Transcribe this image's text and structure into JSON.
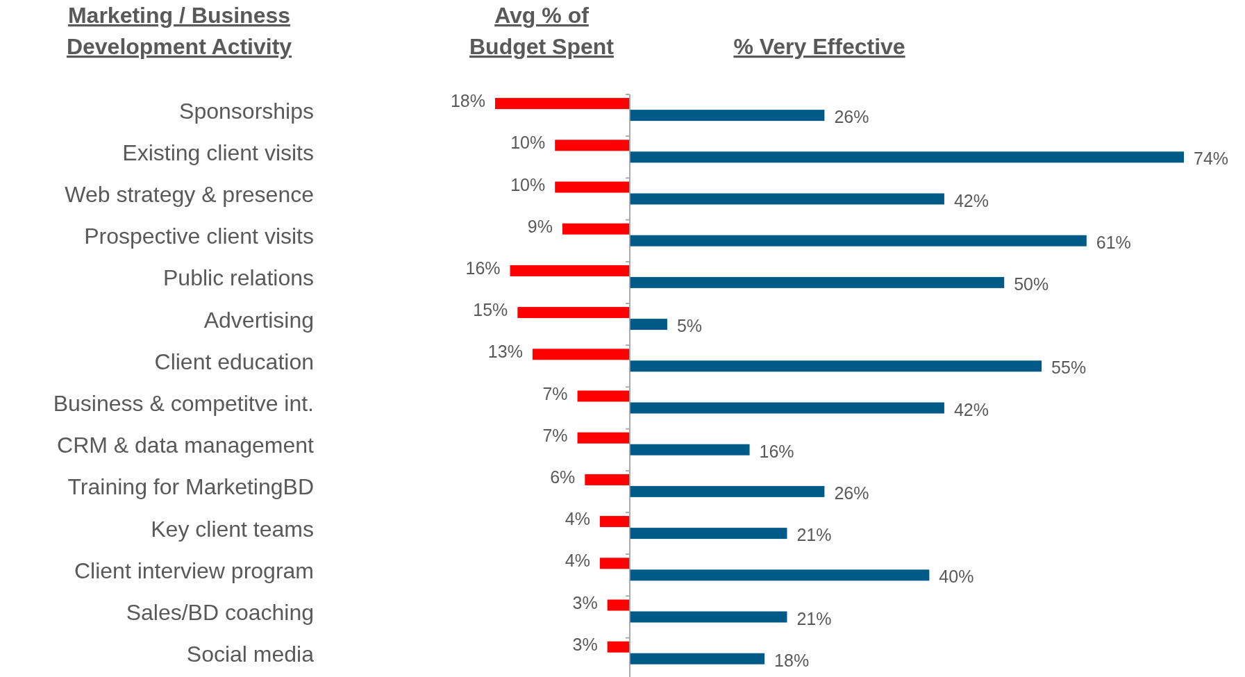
{
  "chart_data": [
    {
      "type": "bar",
      "orientation": "horizontal",
      "title": "Avg % of Budget Spent",
      "ylabel": "Marketing / Business Development  Activity",
      "tick_labels": "y",
      "color": "#ff0000",
      "xlim": [
        18,
        0
      ],
      "categories": [
        "Sponsorships",
        "Existing client visits",
        "Web strategy & presence",
        "Prospective client visits",
        "Public relations",
        "Advertising",
        "Client education",
        "Business & competitve int.",
        "CRM & data management",
        "Training for MarketingBD",
        "Key client teams",
        "Client interview program",
        "Sales/BD coaching",
        "Social media"
      ],
      "values": [
        18,
        10,
        10,
        9,
        16,
        15,
        13,
        7,
        7,
        6,
        4,
        4,
        3,
        3
      ],
      "value_labels": [
        "18%",
        "10%",
        "10%",
        "9%",
        "16%",
        "15%",
        "13%",
        "7%",
        "7%",
        "6%",
        "4%",
        "4%",
        "3%",
        "3%"
      ]
    },
    {
      "type": "bar",
      "orientation": "horizontal",
      "title": "% Very Effective",
      "tick_labels": false,
      "color": "#005a87",
      "xlim": [
        0,
        74
      ],
      "categories": [
        null,
        null,
        null,
        null,
        null,
        null,
        null,
        null,
        null,
        null,
        null,
        null,
        null,
        null
      ],
      "values": [
        26,
        74,
        42,
        61,
        50,
        5,
        55,
        42,
        16,
        26,
        21,
        40,
        21,
        18
      ],
      "value_labels": [
        "26%",
        "74%",
        "42%",
        "61%",
        "50%",
        "5%",
        "55%",
        "42%",
        "16%",
        "26%",
        "21%",
        "40%",
        "21%",
        "18%"
      ]
    }
  ]
}
